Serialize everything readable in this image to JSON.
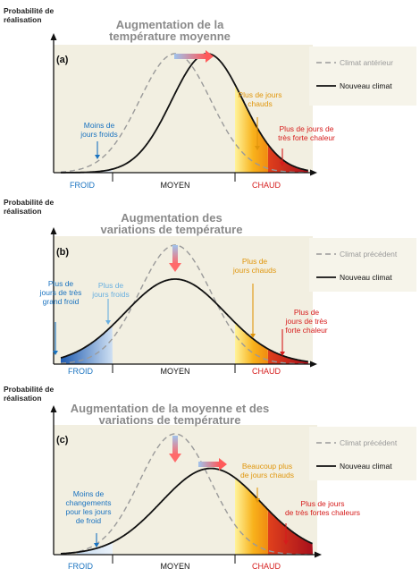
{
  "y_axis_label": [
    "Probabilité de",
    "réalisation"
  ],
  "x_categories": {
    "cold": "FROID",
    "mid": "MOYEN",
    "hot": "CHAUD"
  },
  "colors": {
    "blue": "#1a73c0",
    "light_blue": "#6ab0e0",
    "orange": "#e0960c",
    "red": "#d61c1c",
    "old_curve": "#9a9a9a",
    "new_curve": "#111111"
  },
  "panels": [
    {
      "id": "a",
      "label": "(a)",
      "title": [
        "Augmentation de la",
        "température moyenne"
      ],
      "legend": {
        "old": "Climat antérieur",
        "new": "Nouveau climat"
      },
      "annotations": [
        {
          "text": [
            "Moins de",
            "jours froids"
          ],
          "color": "blue"
        },
        {
          "text": [
            "Plus de jours",
            "chauds"
          ],
          "color": "orange"
        },
        {
          "text": [
            "Plus de jours de",
            "très forte chaleur"
          ],
          "color": "red"
        }
      ],
      "old_distribution": {
        "mean": 0.0,
        "sd": 1.0
      },
      "new_distribution": {
        "mean": 0.9,
        "sd": 1.0
      }
    },
    {
      "id": "b",
      "label": "(b)",
      "title": [
        "Augmentation des",
        "variations de température"
      ],
      "legend": {
        "old": "Climat précédent",
        "new": "Nouveau climat"
      },
      "annotations": [
        {
          "text": [
            "Plus de",
            "jours de très",
            "grand froid"
          ],
          "color": "blue"
        },
        {
          "text": [
            "Plus de",
            "jours froids"
          ],
          "color": "light_blue"
        },
        {
          "text": [
            "Plus de",
            "jours chauds"
          ],
          "color": "orange"
        },
        {
          "text": [
            "Plus de",
            "jours de très",
            "forte chaleur"
          ],
          "color": "red"
        }
      ],
      "old_distribution": {
        "mean": 0.0,
        "sd": 1.0
      },
      "new_distribution": {
        "mean": 0.0,
        "sd": 1.4
      }
    },
    {
      "id": "c",
      "label": "(c)",
      "title": [
        "Augmentation de la moyenne et des",
        "variations de température"
      ],
      "legend": {
        "old": "Climat précédent",
        "new": "Nouveau climat"
      },
      "annotations": [
        {
          "text": [
            "Moins de",
            "changements",
            "pour les jours",
            "de froid"
          ],
          "color": "blue"
        },
        {
          "text": [
            "Beaucoup plus",
            "de jours chauds"
          ],
          "color": "orange"
        },
        {
          "text": [
            "Plus de jours",
            "de très fortes chaleurs"
          ],
          "color": "red"
        }
      ],
      "old_distribution": {
        "mean": 0.0,
        "sd": 1.0
      },
      "new_distribution": {
        "mean": 1.0,
        "sd": 1.4
      }
    }
  ]
}
